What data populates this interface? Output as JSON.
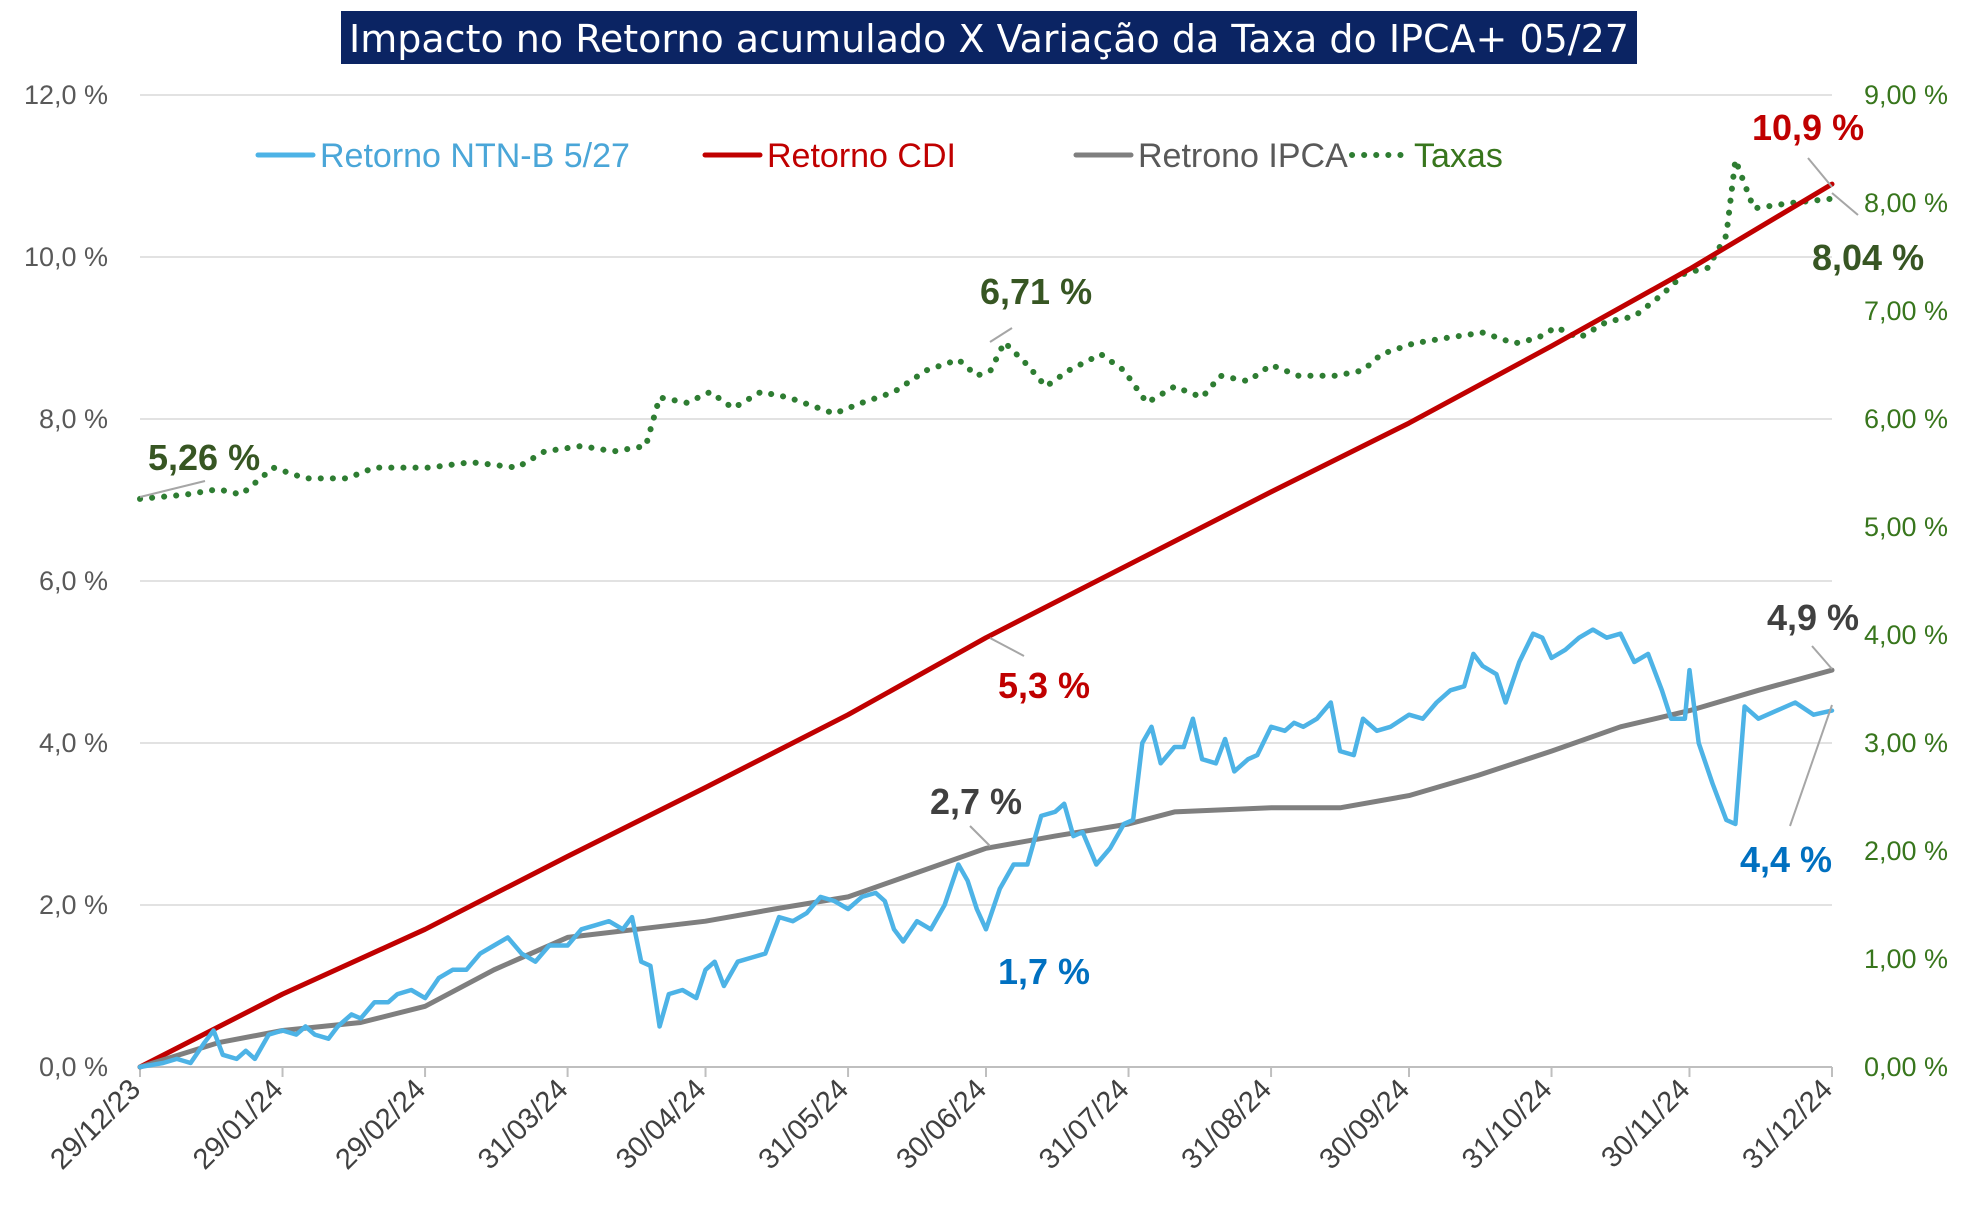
{
  "chart_data": {
    "type": "line",
    "title": "Impacto no Retorno acumulado X Variação da Taxa do IPCA+ 05/27",
    "xlabel": "",
    "ylabel": "",
    "x_ticks": [
      "29/12/23",
      "29/01/24",
      "29/02/24",
      "31/03/24",
      "30/04/24",
      "31/05/24",
      "30/06/24",
      "31/07/24",
      "31/08/24",
      "30/09/24",
      "31/10/24",
      "30/11/24",
      "31/12/24"
    ],
    "y_left": {
      "ylim": [
        0,
        12
      ],
      "tick_labels": [
        "0,0 %",
        "2,0 %",
        "4,0 %",
        "6,0 %",
        "8,0 %",
        "10,0 %",
        "12,0 %"
      ]
    },
    "y_right": {
      "ylim": [
        0,
        9
      ],
      "tick_labels": [
        "0,00 %",
        "1,00 %",
        "2,00 %",
        "3,00 %",
        "4,00 %",
        "5,00 %",
        "6,00 %",
        "7,00 %",
        "8,00 %",
        "9,00 %"
      ]
    },
    "grid": true,
    "legend_position": "top-left",
    "series": [
      {
        "name": "Retorno NTN-B 5/27",
        "axis": "left",
        "color": "#4db3e6",
        "style": "solid",
        "points": [
          [
            "2023-12-29",
            0.0
          ],
          [
            "2024-01-03",
            0.05
          ],
          [
            "2024-01-06",
            0.1
          ],
          [
            "2024-01-09",
            0.05
          ],
          [
            "2024-01-12",
            0.3
          ],
          [
            "2024-01-14",
            0.45
          ],
          [
            "2024-01-16",
            0.15
          ],
          [
            "2024-01-19",
            0.1
          ],
          [
            "2024-01-21",
            0.2
          ],
          [
            "2024-01-23",
            0.1
          ],
          [
            "2024-01-26",
            0.4
          ],
          [
            "2024-01-29",
            0.45
          ],
          [
            "2024-02-01",
            0.4
          ],
          [
            "2024-02-03",
            0.5
          ],
          [
            "2024-02-05",
            0.4
          ],
          [
            "2024-02-08",
            0.35
          ],
          [
            "2024-02-10",
            0.5
          ],
          [
            "2024-02-13",
            0.65
          ],
          [
            "2024-02-15",
            0.6
          ],
          [
            "2024-02-18",
            0.8
          ],
          [
            "2024-02-21",
            0.8
          ],
          [
            "2024-02-23",
            0.9
          ],
          [
            "2024-02-26",
            0.95
          ],
          [
            "2024-02-29",
            0.85
          ],
          [
            "2024-03-03",
            1.1
          ],
          [
            "2024-03-06",
            1.2
          ],
          [
            "2024-03-09",
            1.2
          ],
          [
            "2024-03-12",
            1.4
          ],
          [
            "2024-03-15",
            1.5
          ],
          [
            "2024-03-18",
            1.6
          ],
          [
            "2024-03-21",
            1.4
          ],
          [
            "2024-03-24",
            1.3
          ],
          [
            "2024-03-27",
            1.5
          ],
          [
            "2024-03-31",
            1.5
          ],
          [
            "2024-04-03",
            1.7
          ],
          [
            "2024-04-06",
            1.75
          ],
          [
            "2024-04-09",
            1.8
          ],
          [
            "2024-04-12",
            1.7
          ],
          [
            "2024-04-14",
            1.85
          ],
          [
            "2024-04-16",
            1.3
          ],
          [
            "2024-04-18",
            1.25
          ],
          [
            "2024-04-20",
            0.5
          ],
          [
            "2024-04-22",
            0.9
          ],
          [
            "2024-04-25",
            0.95
          ],
          [
            "2024-04-28",
            0.85
          ],
          [
            "2024-04-30",
            1.2
          ],
          [
            "2024-05-02",
            1.3
          ],
          [
            "2024-05-04",
            1.0
          ],
          [
            "2024-05-07",
            1.3
          ],
          [
            "2024-05-10",
            1.35
          ],
          [
            "2024-05-13",
            1.4
          ],
          [
            "2024-05-16",
            1.85
          ],
          [
            "2024-05-19",
            1.8
          ],
          [
            "2024-05-22",
            1.9
          ],
          [
            "2024-05-25",
            2.1
          ],
          [
            "2024-05-28",
            2.05
          ],
          [
            "2024-05-31",
            1.95
          ],
          [
            "2024-06-03",
            2.1
          ],
          [
            "2024-06-06",
            2.15
          ],
          [
            "2024-06-08",
            2.05
          ],
          [
            "2024-06-10",
            1.7
          ],
          [
            "2024-06-12",
            1.55
          ],
          [
            "2024-06-15",
            1.8
          ],
          [
            "2024-06-18",
            1.7
          ],
          [
            "2024-06-21",
            2.0
          ],
          [
            "2024-06-24",
            2.5
          ],
          [
            "2024-06-26",
            2.3
          ],
          [
            "2024-06-28",
            1.95
          ],
          [
            "2024-06-30",
            1.7
          ],
          [
            "2024-07-03",
            2.2
          ],
          [
            "2024-07-06",
            2.5
          ],
          [
            "2024-07-09",
            2.5
          ],
          [
            "2024-07-12",
            3.1
          ],
          [
            "2024-07-15",
            3.15
          ],
          [
            "2024-07-17",
            3.25
          ],
          [
            "2024-07-19",
            2.85
          ],
          [
            "2024-07-21",
            2.9
          ],
          [
            "2024-07-24",
            2.5
          ],
          [
            "2024-07-27",
            2.7
          ],
          [
            "2024-07-30",
            3.0
          ],
          [
            "2024-08-01",
            3.05
          ],
          [
            "2024-08-03",
            4.0
          ],
          [
            "2024-08-05",
            4.2
          ],
          [
            "2024-08-07",
            3.75
          ],
          [
            "2024-08-10",
            3.95
          ],
          [
            "2024-08-12",
            3.95
          ],
          [
            "2024-08-14",
            4.3
          ],
          [
            "2024-08-16",
            3.8
          ],
          [
            "2024-08-19",
            3.75
          ],
          [
            "2024-08-21",
            4.05
          ],
          [
            "2024-08-23",
            3.65
          ],
          [
            "2024-08-26",
            3.8
          ],
          [
            "2024-08-28",
            3.85
          ],
          [
            "2024-08-31",
            4.2
          ],
          [
            "2024-09-03",
            4.15
          ],
          [
            "2024-09-05",
            4.25
          ],
          [
            "2024-09-07",
            4.2
          ],
          [
            "2024-09-10",
            4.3
          ],
          [
            "2024-09-13",
            4.5
          ],
          [
            "2024-09-15",
            3.9
          ],
          [
            "2024-09-18",
            3.85
          ],
          [
            "2024-09-20",
            4.3
          ],
          [
            "2024-09-23",
            4.15
          ],
          [
            "2024-09-26",
            4.2
          ],
          [
            "2024-09-30",
            4.35
          ],
          [
            "2024-10-03",
            4.3
          ],
          [
            "2024-10-06",
            4.5
          ],
          [
            "2024-10-09",
            4.65
          ],
          [
            "2024-10-12",
            4.7
          ],
          [
            "2024-10-14",
            5.1
          ],
          [
            "2024-10-16",
            4.95
          ],
          [
            "2024-10-19",
            4.85
          ],
          [
            "2024-10-21",
            4.5
          ],
          [
            "2024-10-24",
            5.0
          ],
          [
            "2024-10-27",
            5.35
          ],
          [
            "2024-10-29",
            5.3
          ],
          [
            "2024-10-31",
            5.05
          ],
          [
            "2024-11-03",
            5.15
          ],
          [
            "2024-11-06",
            5.3
          ],
          [
            "2024-11-09",
            5.4
          ],
          [
            "2024-11-12",
            5.3
          ],
          [
            "2024-11-15",
            5.35
          ],
          [
            "2024-11-18",
            5.0
          ],
          [
            "2024-11-21",
            5.1
          ],
          [
            "2024-11-24",
            4.65
          ],
          [
            "2024-11-26",
            4.3
          ],
          [
            "2024-11-29",
            4.3
          ],
          [
            "2024-11-30",
            4.9
          ],
          [
            "2024-12-02",
            4.0
          ],
          [
            "2024-12-05",
            3.5
          ],
          [
            "2024-12-08",
            3.05
          ],
          [
            "2024-12-10",
            3.0
          ],
          [
            "2024-12-12",
            4.45
          ],
          [
            "2024-12-15",
            4.3
          ],
          [
            "2024-12-19",
            4.4
          ],
          [
            "2024-12-23",
            4.5
          ],
          [
            "2024-12-27",
            4.35
          ],
          [
            "2024-12-31",
            4.4
          ]
        ]
      },
      {
        "name": "Retorno CDI",
        "axis": "left",
        "color": "#c00000",
        "style": "solid",
        "points": [
          [
            "2023-12-29",
            0.0
          ],
          [
            "2024-01-29",
            0.9
          ],
          [
            "2024-02-29",
            1.7
          ],
          [
            "2024-03-31",
            2.6
          ],
          [
            "2024-04-30",
            3.45
          ],
          [
            "2024-05-31",
            4.35
          ],
          [
            "2024-06-30",
            5.3
          ],
          [
            "2024-07-31",
            6.2
          ],
          [
            "2024-08-31",
            7.1
          ],
          [
            "2024-09-30",
            7.95
          ],
          [
            "2024-10-31",
            8.9
          ],
          [
            "2024-11-30",
            9.85
          ],
          [
            "2024-12-31",
            10.9
          ]
        ]
      },
      {
        "name": "Retrono IPCA",
        "axis": "left",
        "color": "#7f7f7f",
        "style": "solid",
        "points": [
          [
            "2023-12-29",
            0.0
          ],
          [
            "2024-01-15",
            0.3
          ],
          [
            "2024-01-29",
            0.45
          ],
          [
            "2024-02-15",
            0.55
          ],
          [
            "2024-02-29",
            0.75
          ],
          [
            "2024-03-15",
            1.2
          ],
          [
            "2024-03-31",
            1.6
          ],
          [
            "2024-04-15",
            1.7
          ],
          [
            "2024-04-30",
            1.8
          ],
          [
            "2024-05-15",
            1.95
          ],
          [
            "2024-05-31",
            2.1
          ],
          [
            "2024-06-15",
            2.4
          ],
          [
            "2024-06-30",
            2.7
          ],
          [
            "2024-07-15",
            2.85
          ],
          [
            "2024-07-31",
            3.0
          ],
          [
            "2024-08-10",
            3.15
          ],
          [
            "2024-08-31",
            3.2
          ],
          [
            "2024-09-15",
            3.2
          ],
          [
            "2024-09-30",
            3.35
          ],
          [
            "2024-10-15",
            3.6
          ],
          [
            "2024-10-31",
            3.9
          ],
          [
            "2024-11-15",
            4.2
          ],
          [
            "2024-11-30",
            4.4
          ],
          [
            "2024-12-15",
            4.65
          ],
          [
            "2024-12-31",
            4.9
          ]
        ]
      },
      {
        "name": "Taxas",
        "axis": "right",
        "color": "#2e7d32",
        "style": "dotted",
        "points": [
          [
            "2023-12-29",
            5.26
          ],
          [
            "2024-01-08",
            5.3
          ],
          [
            "2024-01-15",
            5.35
          ],
          [
            "2024-01-20",
            5.3
          ],
          [
            "2024-01-27",
            5.55
          ],
          [
            "2024-02-03",
            5.45
          ],
          [
            "2024-02-12",
            5.45
          ],
          [
            "2024-02-18",
            5.55
          ],
          [
            "2024-03-01",
            5.55
          ],
          [
            "2024-03-10",
            5.6
          ],
          [
            "2024-03-20",
            5.55
          ],
          [
            "2024-03-26",
            5.7
          ],
          [
            "2024-04-03",
            5.75
          ],
          [
            "2024-04-10",
            5.7
          ],
          [
            "2024-04-17",
            5.75
          ],
          [
            "2024-04-20",
            6.2
          ],
          [
            "2024-04-26",
            6.15
          ],
          [
            "2024-05-01",
            6.25
          ],
          [
            "2024-05-06",
            6.1
          ],
          [
            "2024-05-12",
            6.25
          ],
          [
            "2024-05-18",
            6.2
          ],
          [
            "2024-05-28",
            6.05
          ],
          [
            "2024-06-03",
            6.15
          ],
          [
            "2024-06-10",
            6.25
          ],
          [
            "2024-06-17",
            6.45
          ],
          [
            "2024-06-24",
            6.55
          ],
          [
            "2024-06-28",
            6.4
          ],
          [
            "2024-07-01",
            6.45
          ],
          [
            "2024-07-04",
            6.71
          ],
          [
            "2024-07-09",
            6.5
          ],
          [
            "2024-07-13",
            6.3
          ],
          [
            "2024-07-18",
            6.45
          ],
          [
            "2024-07-25",
            6.6
          ],
          [
            "2024-07-30",
            6.45
          ],
          [
            "2024-08-04",
            6.15
          ],
          [
            "2024-08-10",
            6.3
          ],
          [
            "2024-08-16",
            6.2
          ],
          [
            "2024-08-20",
            6.4
          ],
          [
            "2024-08-26",
            6.35
          ],
          [
            "2024-08-31",
            6.5
          ],
          [
            "2024-09-06",
            6.4
          ],
          [
            "2024-09-14",
            6.4
          ],
          [
            "2024-09-20",
            6.45
          ],
          [
            "2024-09-24",
            6.6
          ],
          [
            "2024-10-01",
            6.7
          ],
          [
            "2024-10-08",
            6.75
          ],
          [
            "2024-10-16",
            6.8
          ],
          [
            "2024-10-23",
            6.7
          ],
          [
            "2024-10-28",
            6.75
          ],
          [
            "2024-11-01",
            6.85
          ],
          [
            "2024-11-06",
            6.75
          ],
          [
            "2024-11-12",
            6.9
          ],
          [
            "2024-11-18",
            6.95
          ],
          [
            "2024-11-24",
            7.15
          ],
          [
            "2024-11-29",
            7.35
          ],
          [
            "2024-12-04",
            7.4
          ],
          [
            "2024-12-08",
            7.7
          ],
          [
            "2024-12-10",
            8.4
          ],
          [
            "2024-12-14",
            7.95
          ],
          [
            "2024-12-22",
            8.0
          ],
          [
            "2024-12-31",
            8.04
          ]
        ]
      }
    ],
    "annotations": [
      {
        "text": "5,26 %",
        "series": "Taxas",
        "color": "#375623"
      },
      {
        "text": "6,71 %",
        "series": "Taxas",
        "color": "#375623"
      },
      {
        "text": "8,04 %",
        "series": "Taxas",
        "color": "#375623"
      },
      {
        "text": "10,9 %",
        "series": "Retorno CDI",
        "color": "#c00000"
      },
      {
        "text": "5,3 %",
        "series": "Retorno CDI",
        "color": "#c00000"
      },
      {
        "text": "2,7 %",
        "series": "Retrono IPCA",
        "color": "#404040"
      },
      {
        "text": "4,9 %",
        "series": "Retrono IPCA",
        "color": "#404040"
      },
      {
        "text": "1,7 %",
        "series": "Retorno NTN-B 5/27",
        "color": "#0070c0"
      },
      {
        "text": "4,4 %",
        "series": "Retorno NTN-B 5/27",
        "color": "#0070c0"
      }
    ]
  }
}
